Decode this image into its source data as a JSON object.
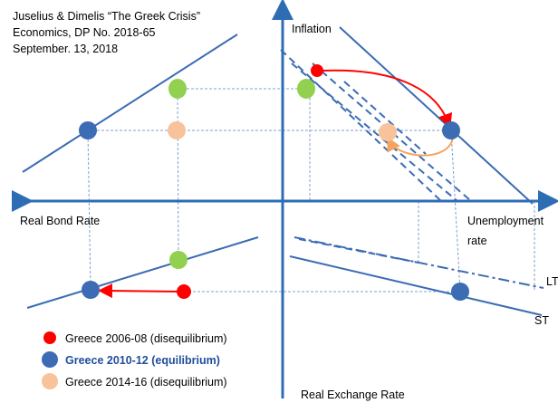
{
  "citation": [
    "Juselius & Dimelis “The Greek Crisis”",
    "Economics, DP No. 2018-65",
    "September. 13, 2018"
  ],
  "axes": {
    "inflation": "Inflation",
    "bond_rate": "Real Bond Rate",
    "unemployment": [
      "Unemployment",
      "rate"
    ],
    "exchange_rate": "Real Exchange Rate"
  },
  "curves": {
    "lt": "LT",
    "st": "ST"
  },
  "legend": [
    {
      "label": "Greece 2006-08 (disequilibrium)",
      "color": "#ff0000"
    },
    {
      "label": "Greece 2010-12 (equilibrium)",
      "color": "#3b6cb4"
    },
    {
      "label": "Greece 2014-16 (disequilibrium)",
      "color": "#f8c39a"
    }
  ]
}
